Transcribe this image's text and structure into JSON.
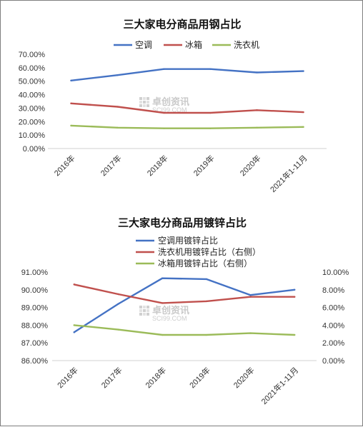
{
  "watermark": {
    "text": "卓创资讯",
    "subtext": "SCI99.COM"
  },
  "chart_data": [
    {
      "type": "line",
      "title": "三大家电分商品用钢占比",
      "categories": [
        "2016年",
        "2017年",
        "2018年",
        "2019年",
        "2020年",
        "2021年1-11月"
      ],
      "y_ticks": [
        "0.00%",
        "10.00%",
        "20.00%",
        "30.00%",
        "40.00%",
        "50.00%",
        "60.00%",
        "70.00%"
      ],
      "ylim": [
        0,
        70
      ],
      "legend_position": "top",
      "grid": false,
      "series": [
        {
          "name": "空调",
          "color": "#4472c4",
          "values": [
            50.5,
            54.5,
            59.0,
            59.0,
            56.5,
            57.5
          ]
        },
        {
          "name": "冰箱",
          "color": "#c0504d",
          "values": [
            33.5,
            31.0,
            26.5,
            26.5,
            28.5,
            27.0
          ]
        },
        {
          "name": "洗衣机",
          "color": "#9bbb59",
          "values": [
            17.0,
            15.5,
            15.0,
            15.0,
            15.5,
            16.0
          ]
        }
      ]
    },
    {
      "type": "line",
      "title": "三大家电分商品用镀锌占比",
      "categories": [
        "2016年",
        "2017年",
        "2018年",
        "2019年",
        "2020年",
        "2021年1-11月"
      ],
      "y_ticks_left": [
        "86.00%",
        "87.00%",
        "88.00%",
        "89.00%",
        "90.00%",
        "91.00%"
      ],
      "ylim_left": [
        86,
        91
      ],
      "y_ticks_right": [
        "0.00%",
        "2.00%",
        "4.00%",
        "6.00%",
        "8.00%",
        "10.00%"
      ],
      "ylim_right": [
        0,
        10
      ],
      "legend_position": "top",
      "grid": false,
      "series": [
        {
          "name": "空调用镀锌占比",
          "axis": "left",
          "color": "#4472c4",
          "values": [
            87.6,
            89.2,
            90.65,
            90.6,
            89.7,
            90.0
          ]
        },
        {
          "name": "洗衣机用镀锌占比（右侧）",
          "axis": "right",
          "color": "#c0504d",
          "values": [
            8.6,
            7.5,
            6.5,
            6.7,
            7.2,
            7.2
          ]
        },
        {
          "name": "冰箱用镀锌占比（右侧）",
          "axis": "right",
          "color": "#9bbb59",
          "values": [
            4.0,
            3.5,
            2.9,
            2.9,
            3.1,
            2.9
          ]
        }
      ]
    }
  ]
}
